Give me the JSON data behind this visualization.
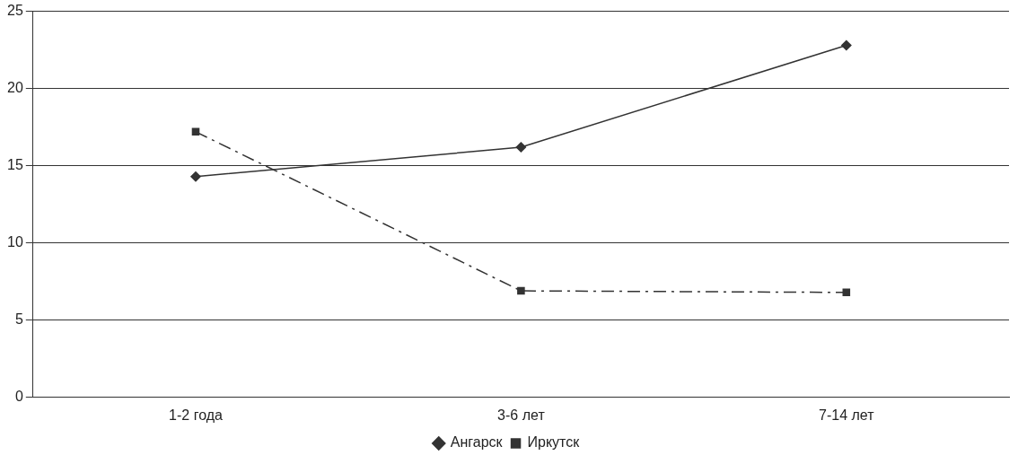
{
  "chart_data": {
    "type": "line",
    "categories": [
      "1-2 года",
      "3-6 лет",
      "7-14 лет"
    ],
    "series": [
      {
        "name": "Ангарск",
        "color": "#333333",
        "values": [
          14.3,
          16.2,
          22.8
        ],
        "marker": "diamond",
        "line_style": "solid"
      },
      {
        "name": "Иркутск",
        "color": "#333333",
        "values": [
          17.2,
          6.9,
          6.8
        ],
        "marker": "square",
        "line_style": "dashed"
      }
    ],
    "ylim": [
      0,
      25
    ],
    "yticks": [
      0,
      5,
      10,
      15,
      20,
      25
    ],
    "grid": "y",
    "legend": "bottom"
  }
}
